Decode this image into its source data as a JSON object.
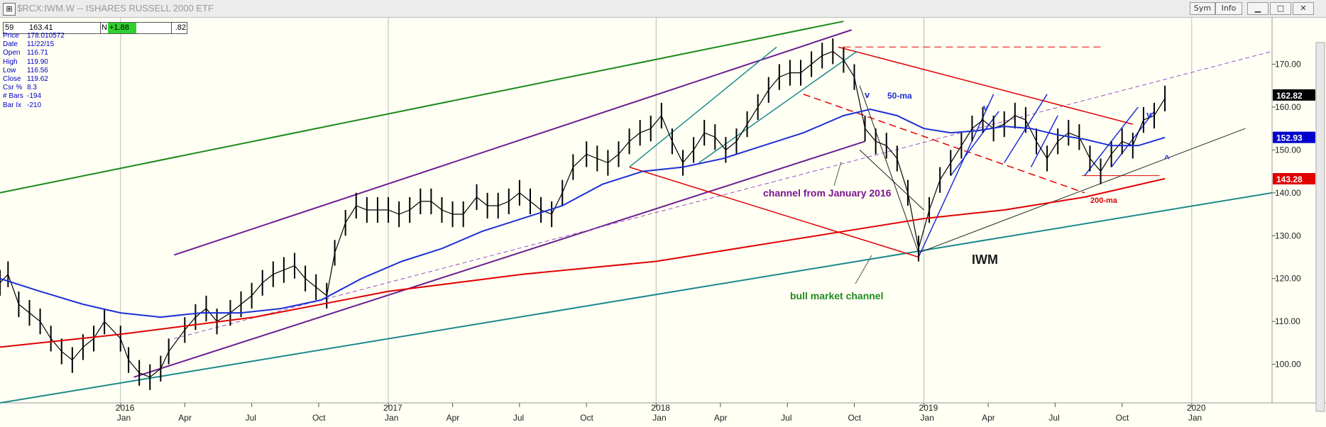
{
  "window": {
    "title": "$RCX:IWM.W -- ISHARES RUSSELL 2000 ETF",
    "icon": "chart-app-icon",
    "buttons": {
      "sym": "Sym",
      "info": "Info",
      "minimize": "▁",
      "maximize": "□",
      "close": "✕"
    }
  },
  "infobar": {
    "bars": "59",
    "price": "163.41",
    "n_label": "N",
    "change": "+1.88",
    "pct": ".82"
  },
  "data_panel": [
    {
      "label": "Price",
      "value": "178.010572"
    },
    {
      "label": "Date",
      "value": "11/22/15"
    },
    {
      "label": "Open",
      "value": "116.71"
    },
    {
      "label": "High",
      "value": "119.90"
    },
    {
      "label": "Low",
      "value": "116.56"
    },
    {
      "label": "Close",
      "value": "119.62"
    },
    {
      "label": "Csr %",
      "value": "8.3"
    },
    {
      "label": "# Bars",
      "value": "-194"
    },
    {
      "label": "Bar Ix",
      "value": "-210"
    }
  ],
  "chart_data": {
    "type": "line",
    "title": "IWM",
    "y_ticks": [
      "100.00",
      "110.00",
      "120.00",
      "130.00",
      "140.00",
      "150.00",
      "160.00",
      "170.00"
    ],
    "ylim": [
      91,
      181
    ],
    "x_ticks": [
      {
        "label": "Jan",
        "year": "2016",
        "t": 2016.0
      },
      {
        "label": "Apr",
        "year": "",
        "t": 2016.24
      },
      {
        "label": "Jul",
        "year": "",
        "t": 2016.49
      },
      {
        "label": "Oct",
        "year": "",
        "t": 2016.74
      },
      {
        "label": "Jan",
        "year": "2017",
        "t": 2017.0
      },
      {
        "label": "Apr",
        "year": "",
        "t": 2017.24
      },
      {
        "label": "Jul",
        "year": "",
        "t": 2017.49
      },
      {
        "label": "Oct",
        "year": "",
        "t": 2017.74
      },
      {
        "label": "Jan",
        "year": "2018",
        "t": 2018.0
      },
      {
        "label": "Apr",
        "year": "",
        "t": 2018.24
      },
      {
        "label": "Jul",
        "year": "",
        "t": 2018.49
      },
      {
        "label": "Oct",
        "year": "",
        "t": 2018.74
      },
      {
        "label": "Jan",
        "year": "2019",
        "t": 2019.0
      },
      {
        "label": "Apr",
        "year": "",
        "t": 2019.24
      },
      {
        "label": "Jul",
        "year": "",
        "t": 2019.49
      },
      {
        "label": "Oct",
        "year": "",
        "t": 2019.74
      },
      {
        "label": "Jan",
        "year": "2020",
        "t": 2020.0
      }
    ],
    "xlim": [
      2015.55,
      2020.3
    ],
    "price_tags": [
      {
        "value": 162.82,
        "label": "162.82",
        "color": "#000000"
      },
      {
        "value": 152.93,
        "label": "152.93",
        "color": "#0000cc"
      },
      {
        "value": 143.28,
        "label": "143.28",
        "color": "#e00000"
      }
    ],
    "series": [
      {
        "name": "weekly close",
        "color": "#000000",
        "points": [
          [
            2015.55,
            119
          ],
          [
            2015.58,
            121
          ],
          [
            2015.62,
            114
          ],
          [
            2015.66,
            112
          ],
          [
            2015.7,
            110
          ],
          [
            2015.74,
            106
          ],
          [
            2015.78,
            103
          ],
          [
            2015.82,
            101
          ],
          [
            2015.86,
            104
          ],
          [
            2015.9,
            106
          ],
          [
            2015.94,
            110
          ],
          [
            2016.0,
            106
          ],
          [
            2016.03,
            101
          ],
          [
            2016.07,
            98
          ],
          [
            2016.11,
            97
          ],
          [
            2016.15,
            99
          ],
          [
            2016.18,
            103
          ],
          [
            2016.24,
            108
          ],
          [
            2016.28,
            111
          ],
          [
            2016.32,
            113
          ],
          [
            2016.36,
            110
          ],
          [
            2016.41,
            112
          ],
          [
            2016.45,
            114
          ],
          [
            2016.49,
            116
          ],
          [
            2016.53,
            119
          ],
          [
            2016.57,
            121
          ],
          [
            2016.61,
            122
          ],
          [
            2016.65,
            123
          ],
          [
            2016.69,
            120
          ],
          [
            2016.73,
            118
          ],
          [
            2016.77,
            116
          ],
          [
            2016.8,
            126
          ],
          [
            2016.84,
            133
          ],
          [
            2016.88,
            137
          ],
          [
            2016.92,
            136
          ],
          [
            2016.96,
            136
          ],
          [
            2017.0,
            136
          ],
          [
            2017.04,
            135
          ],
          [
            2017.08,
            136
          ],
          [
            2017.12,
            138
          ],
          [
            2017.16,
            138
          ],
          [
            2017.2,
            136
          ],
          [
            2017.24,
            135
          ],
          [
            2017.28,
            135
          ],
          [
            2017.33,
            139
          ],
          [
            2017.37,
            137
          ],
          [
            2017.41,
            137
          ],
          [
            2017.45,
            138
          ],
          [
            2017.49,
            140
          ],
          [
            2017.53,
            138
          ],
          [
            2017.57,
            136
          ],
          [
            2017.61,
            135
          ],
          [
            2017.65,
            140
          ],
          [
            2017.69,
            146
          ],
          [
            2017.74,
            149
          ],
          [
            2017.78,
            148
          ],
          [
            2017.82,
            147
          ],
          [
            2017.86,
            149
          ],
          [
            2017.9,
            152
          ],
          [
            2017.94,
            154
          ],
          [
            2017.98,
            155
          ],
          [
            2018.02,
            158
          ],
          [
            2018.06,
            152
          ],
          [
            2018.1,
            147
          ],
          [
            2018.14,
            150
          ],
          [
            2018.18,
            154
          ],
          [
            2018.22,
            153
          ],
          [
            2018.26,
            150
          ],
          [
            2018.3,
            152
          ],
          [
            2018.34,
            156
          ],
          [
            2018.38,
            160
          ],
          [
            2018.42,
            164
          ],
          [
            2018.46,
            167
          ],
          [
            2018.5,
            168
          ],
          [
            2018.54,
            168
          ],
          [
            2018.58,
            170
          ],
          [
            2018.62,
            172
          ],
          [
            2018.66,
            173
          ],
          [
            2018.7,
            171
          ],
          [
            2018.74,
            167
          ],
          [
            2018.78,
            155
          ],
          [
            2018.82,
            152
          ],
          [
            2018.86,
            151
          ],
          [
            2018.9,
            148
          ],
          [
            2018.94,
            140
          ],
          [
            2018.98,
            127
          ],
          [
            2019.02,
            136
          ],
          [
            2019.06,
            143
          ],
          [
            2019.1,
            147
          ],
          [
            2019.14,
            151
          ],
          [
            2019.18,
            155
          ],
          [
            2019.22,
            157
          ],
          [
            2019.26,
            155
          ],
          [
            2019.3,
            156
          ],
          [
            2019.34,
            158
          ],
          [
            2019.38,
            157
          ],
          [
            2019.42,
            152
          ],
          [
            2019.46,
            148
          ],
          [
            2019.5,
            152
          ],
          [
            2019.54,
            154
          ],
          [
            2019.58,
            153
          ],
          [
            2019.62,
            148
          ],
          [
            2019.66,
            145
          ],
          [
            2019.7,
            149
          ],
          [
            2019.74,
            152
          ],
          [
            2019.78,
            151
          ],
          [
            2019.82,
            157
          ],
          [
            2019.86,
            158
          ],
          [
            2019.9,
            162
          ]
        ]
      },
      {
        "name": "50-ma",
        "color": "#1c2fd6",
        "points": [
          [
            2015.55,
            120
          ],
          [
            2015.7,
            117
          ],
          [
            2015.86,
            114
          ],
          [
            2016.0,
            112
          ],
          [
            2016.15,
            111
          ],
          [
            2016.3,
            112
          ],
          [
            2016.45,
            112
          ],
          [
            2016.6,
            113
          ],
          [
            2016.75,
            115
          ],
          [
            2016.9,
            120
          ],
          [
            2017.05,
            124
          ],
          [
            2017.2,
            127
          ],
          [
            2017.35,
            131
          ],
          [
            2017.5,
            134
          ],
          [
            2017.65,
            137
          ],
          [
            2017.8,
            142
          ],
          [
            2017.95,
            145
          ],
          [
            2018.1,
            146
          ],
          [
            2018.25,
            148
          ],
          [
            2018.4,
            151
          ],
          [
            2018.55,
            154
          ],
          [
            2018.7,
            158
          ],
          [
            2018.8,
            159.5
          ],
          [
            2018.9,
            158
          ],
          [
            2019.0,
            155
          ],
          [
            2019.1,
            154
          ],
          [
            2019.2,
            154.5
          ],
          [
            2019.3,
            155.5
          ],
          [
            2019.4,
            155
          ],
          [
            2019.5,
            153.5
          ],
          [
            2019.6,
            152.5
          ],
          [
            2019.7,
            151
          ],
          [
            2019.8,
            151
          ],
          [
            2019.9,
            152.9
          ]
        ]
      },
      {
        "name": "200-ma",
        "color": "#e00000",
        "points": [
          [
            2015.55,
            104
          ],
          [
            2016.0,
            107
          ],
          [
            2016.5,
            111
          ],
          [
            2017.0,
            117
          ],
          [
            2017.5,
            121
          ],
          [
            2018.0,
            124
          ],
          [
            2018.5,
            129
          ],
          [
            2018.8,
            132
          ],
          [
            2019.0,
            134
          ],
          [
            2019.3,
            136
          ],
          [
            2019.6,
            139
          ],
          [
            2019.9,
            143.3
          ]
        ]
      }
    ],
    "annotations": [
      {
        "text": "channel from January 2016",
        "color": "#7a1590"
      },
      {
        "text": "bull market channel",
        "color": "#1f8a1f"
      },
      {
        "text": "50-ma",
        "color": "#1c2fd6"
      },
      {
        "text": "200-ma",
        "color": "#e00000"
      },
      {
        "text": "IWM",
        "color": "#1a1a1a"
      },
      {
        "text": "v",
        "color": "#1c2fd6"
      },
      {
        "text": "v",
        "color": "#1c2fd6"
      },
      {
        "text": "v",
        "color": "#1c2fd6"
      },
      {
        "text": "^",
        "color": "#1c2fd6"
      }
    ]
  }
}
